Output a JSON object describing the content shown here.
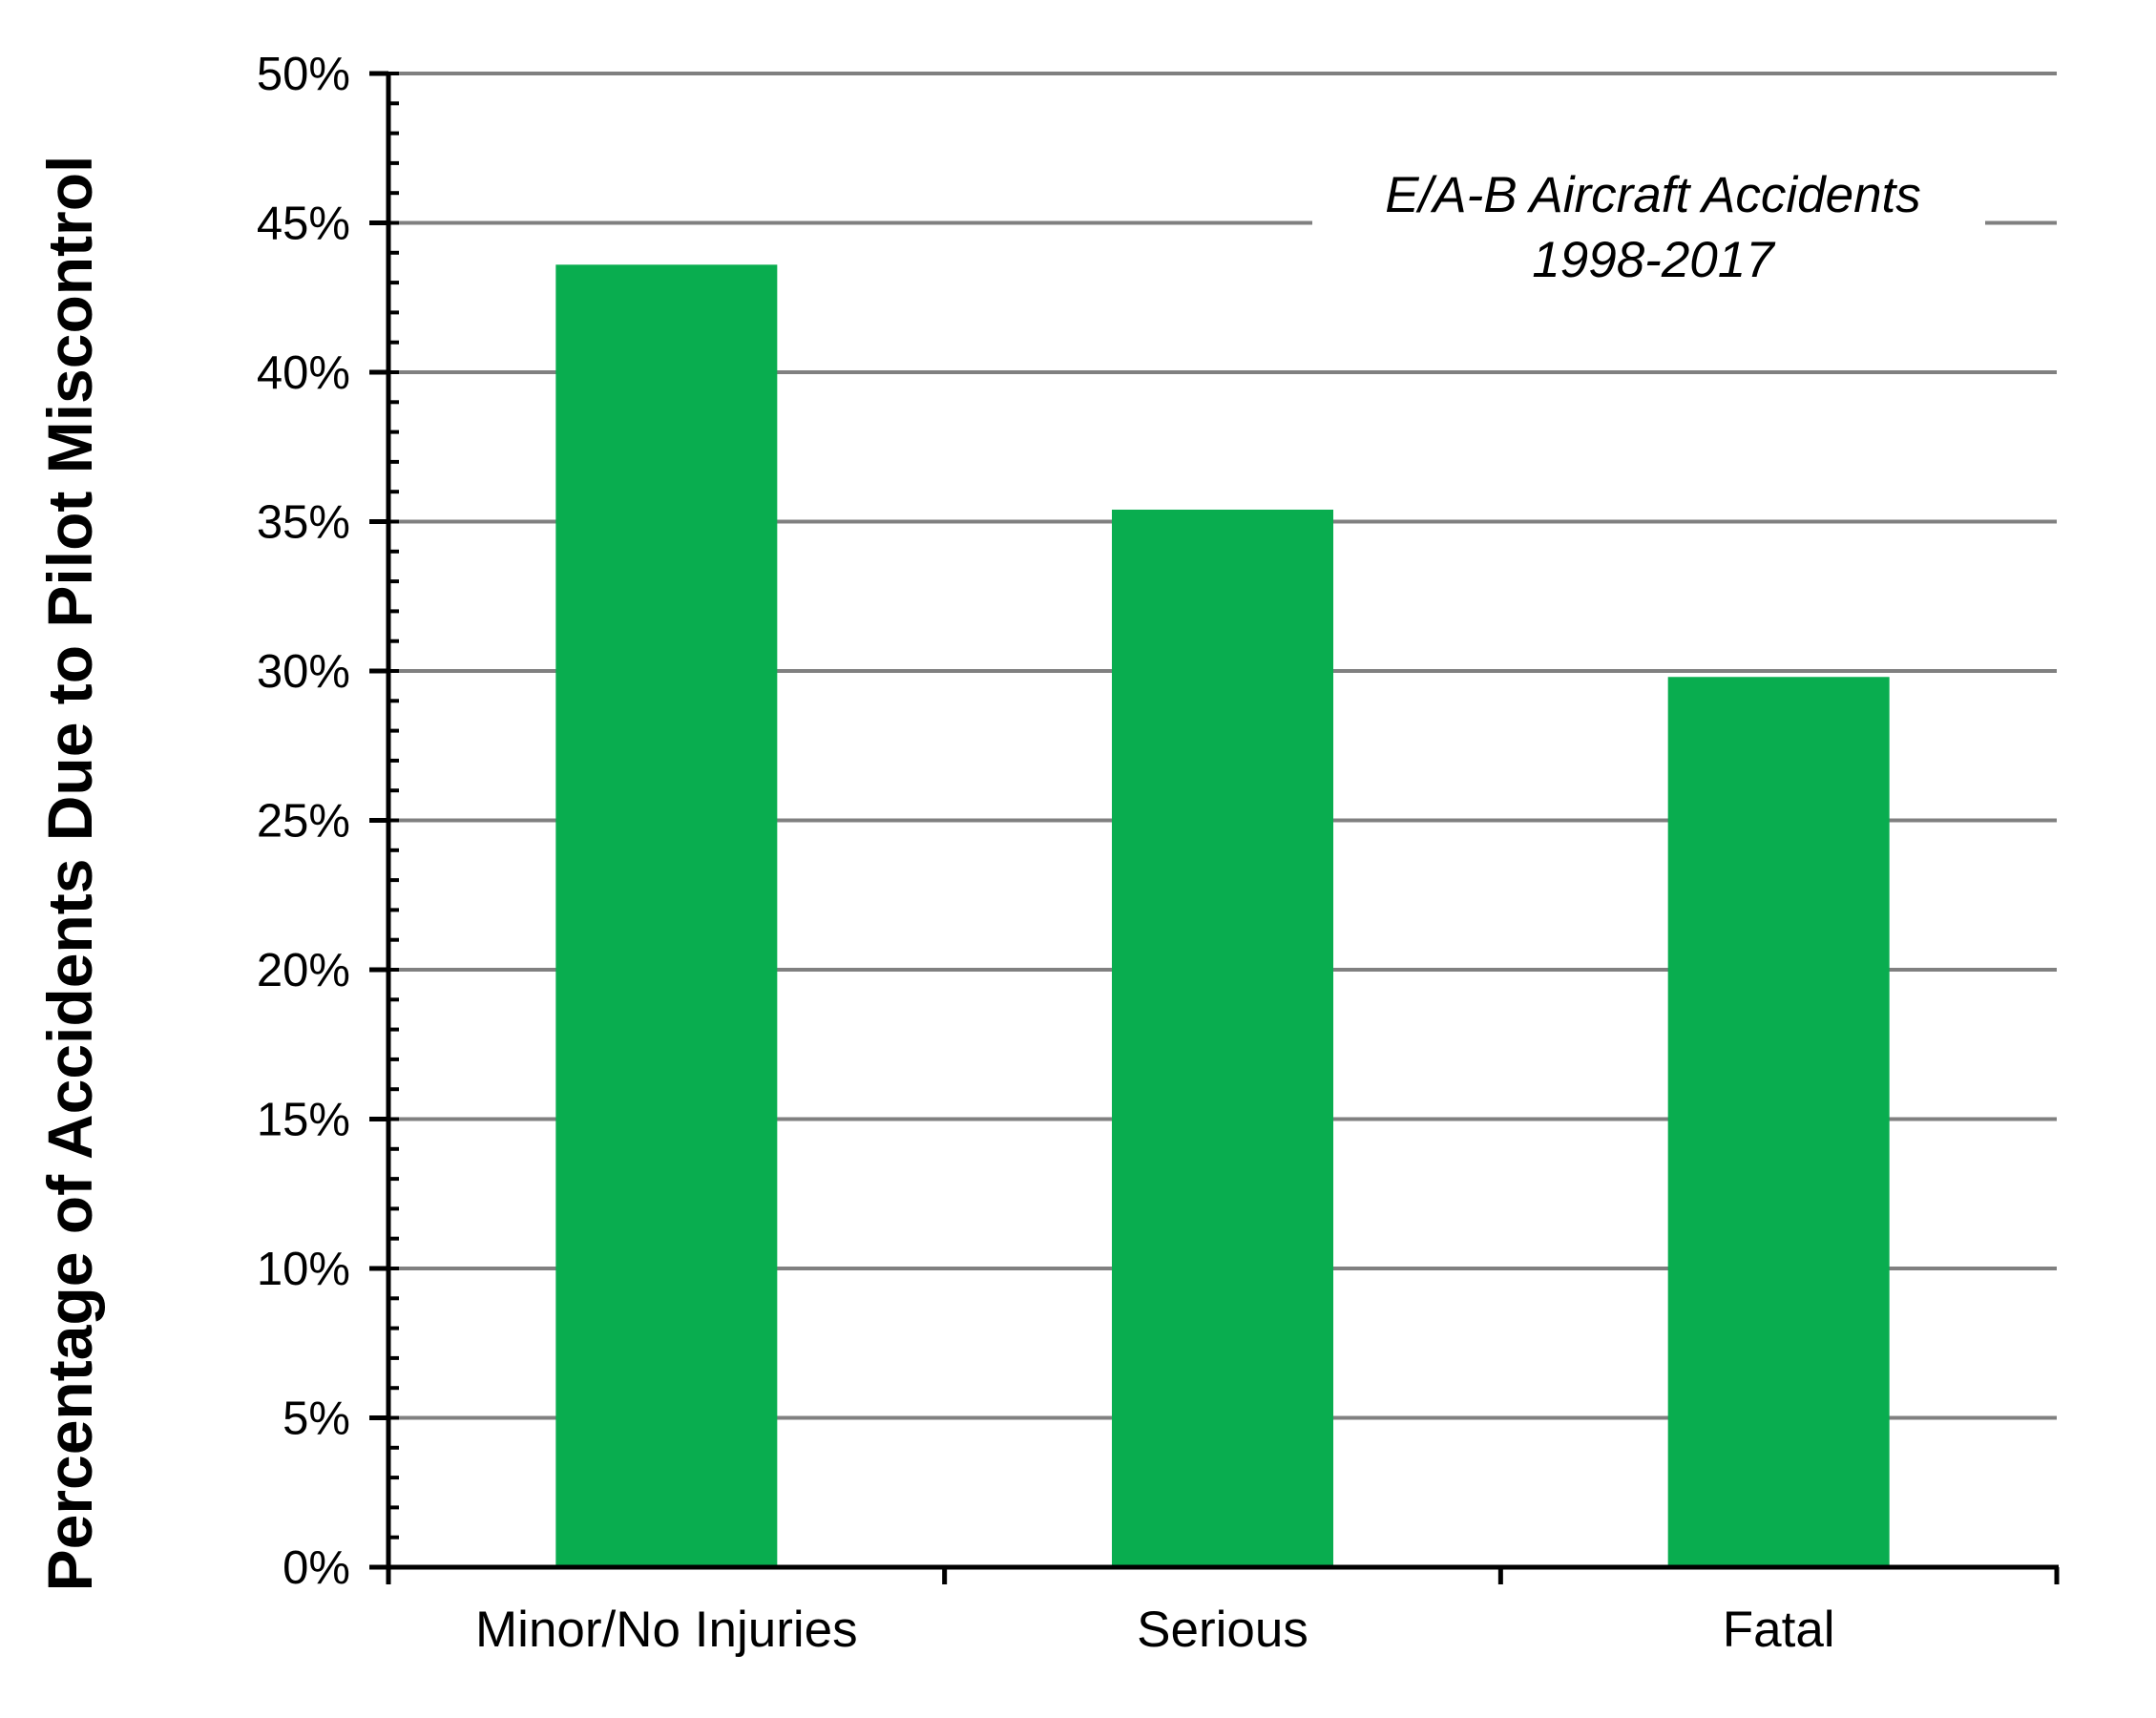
{
  "chart_data": {
    "type": "bar",
    "categories": [
      "Minor/No Injuries",
      "Serious",
      "Fatal"
    ],
    "values": [
      43.6,
      35.4,
      29.8
    ],
    "ylabel": "Percentage of Accidents Due to Pilot Miscontrol",
    "xlabel": "",
    "ylim": [
      0,
      50
    ],
    "yticks": [
      0,
      5,
      10,
      15,
      20,
      25,
      30,
      35,
      40,
      45,
      50
    ],
    "ytick_labels": [
      "0%",
      "5%",
      "10%",
      "15%",
      "20%",
      "25%",
      "30%",
      "35%",
      "40%",
      "45%",
      "50%"
    ],
    "annotation": {
      "line1": "E/A-B Aircraft Accidents",
      "line2": "1998-2017"
    },
    "grid": true,
    "legend": "none"
  },
  "colors": {
    "bar": "#09ad4f",
    "grid": "#808080",
    "axis": "#000000",
    "background": "#ffffff"
  }
}
